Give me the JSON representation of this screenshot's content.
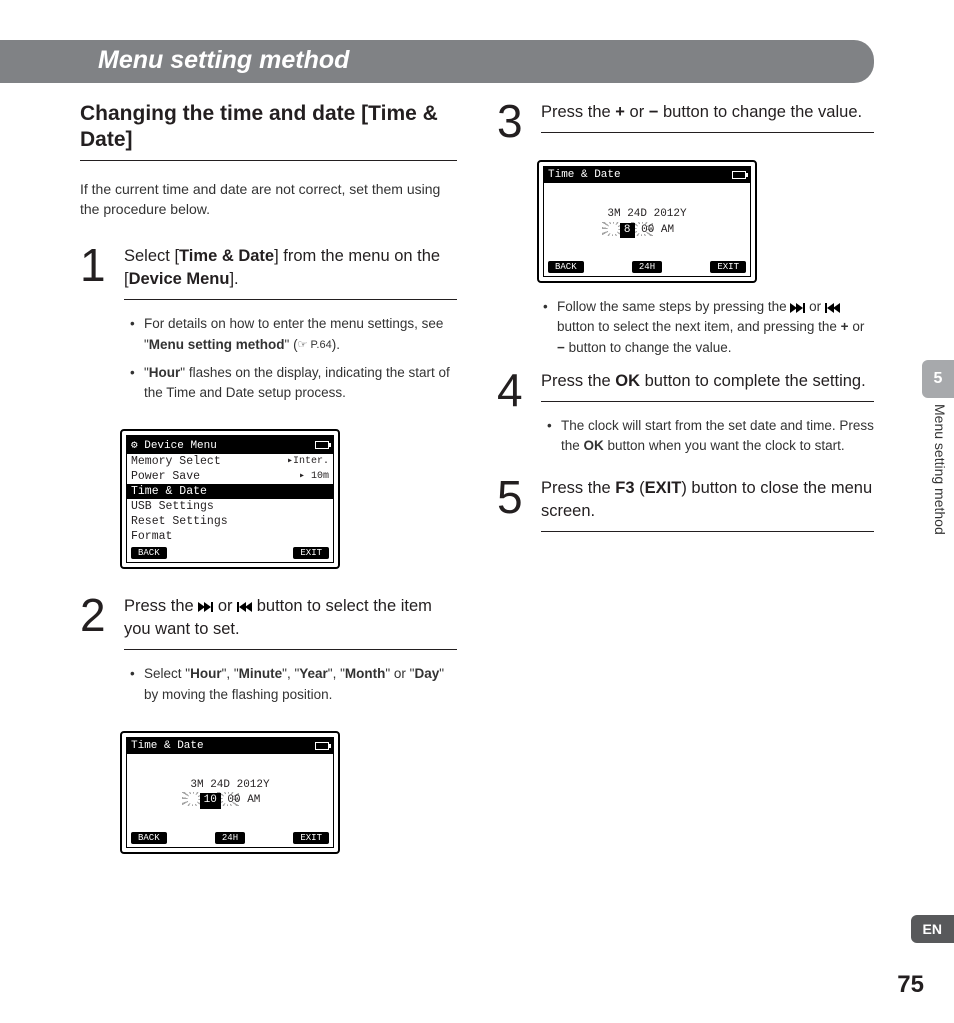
{
  "chapter_title": "Menu setting method",
  "section_title": "Changing the time and date [Time & Date]",
  "intro": "If the current time and date are not correct, set them using the procedure below.",
  "side": {
    "chapter_num": "5",
    "label": "Menu setting method",
    "lang": "EN"
  },
  "page_number": "75",
  "steps": {
    "s1": {
      "num": "1",
      "text_pre": "Select [",
      "text_b1": "Time & Date",
      "text_mid": "] from the menu on the [",
      "text_b2": "Device Menu",
      "text_post": "].",
      "bullets": {
        "b1_pre": "For details on how to enter the menu settings, see \"",
        "b1_b": "Menu setting method",
        "b1_post": "\" (",
        "b1_ref": "☞ P.64",
        "b1_end": ").",
        "b2_pre": "\"",
        "b2_b": "Hour",
        "b2_post": "\" flashes on the display, indicating the start of the Time and Date setup process."
      }
    },
    "s2": {
      "num": "2",
      "text_pre": "Press the ",
      "text_mid": " or ",
      "text_post": " button to select the item you want to set.",
      "bullet_pre": "Select \"",
      "bullet_items": [
        "Hour",
        "Minute",
        "Year",
        "Month",
        "Day"
      ],
      "bullet_post": "\" by moving the flashing position."
    },
    "s3": {
      "num": "3",
      "text_pre": "Press the ",
      "text_b1": "+",
      "text_mid": " or ",
      "text_b2": "−",
      "text_post": " button to change the value.",
      "bullet_pre": "Follow the same steps by pressing the ",
      "bullet_mid1": " or ",
      "bullet_mid2": " button to select the next item, and pressing the ",
      "bullet_b1": "+",
      "bullet_mid3": " or ",
      "bullet_b2": "−",
      "bullet_post": " button to change the value."
    },
    "s4": {
      "num": "4",
      "text_pre": "Press the ",
      "text_b": "OK",
      "text_post": " button to complete the setting.",
      "bullet_pre": "The clock will start from the set date and time. Press the ",
      "bullet_b": "OK",
      "bullet_post": " button when you want the clock to start."
    },
    "s5": {
      "num": "5",
      "text_pre": "Press the ",
      "text_b1": "F3",
      "text_mid": " (",
      "text_b2": "EXIT",
      "text_post": ") button to close the menu screen."
    }
  },
  "lcd1": {
    "title": "Device Menu",
    "rows": [
      {
        "label": "Memory Select",
        "value": "▸Inter."
      },
      {
        "label": "Power Save",
        "value": "▸ 10m"
      },
      {
        "label": "Time & Date",
        "value": "",
        "selected": true
      },
      {
        "label": "USB Settings",
        "value": ""
      },
      {
        "label": "Reset Settings",
        "value": ""
      },
      {
        "label": "Format",
        "value": ""
      }
    ],
    "footer": [
      "BACK",
      "EXIT"
    ]
  },
  "lcd2": {
    "title": "Time & Date",
    "line1": "3M  24D  2012Y",
    "flash": "10",
    "line2_tail": " 00  AM",
    "footer": [
      "BACK",
      "24H",
      "EXIT"
    ]
  },
  "lcd3": {
    "title": "Time & Date",
    "line1": "3M  24D  2012Y",
    "flash": "8",
    "line2_tail": " 00  AM",
    "footer": [
      "BACK",
      "24H",
      "EXIT"
    ]
  }
}
